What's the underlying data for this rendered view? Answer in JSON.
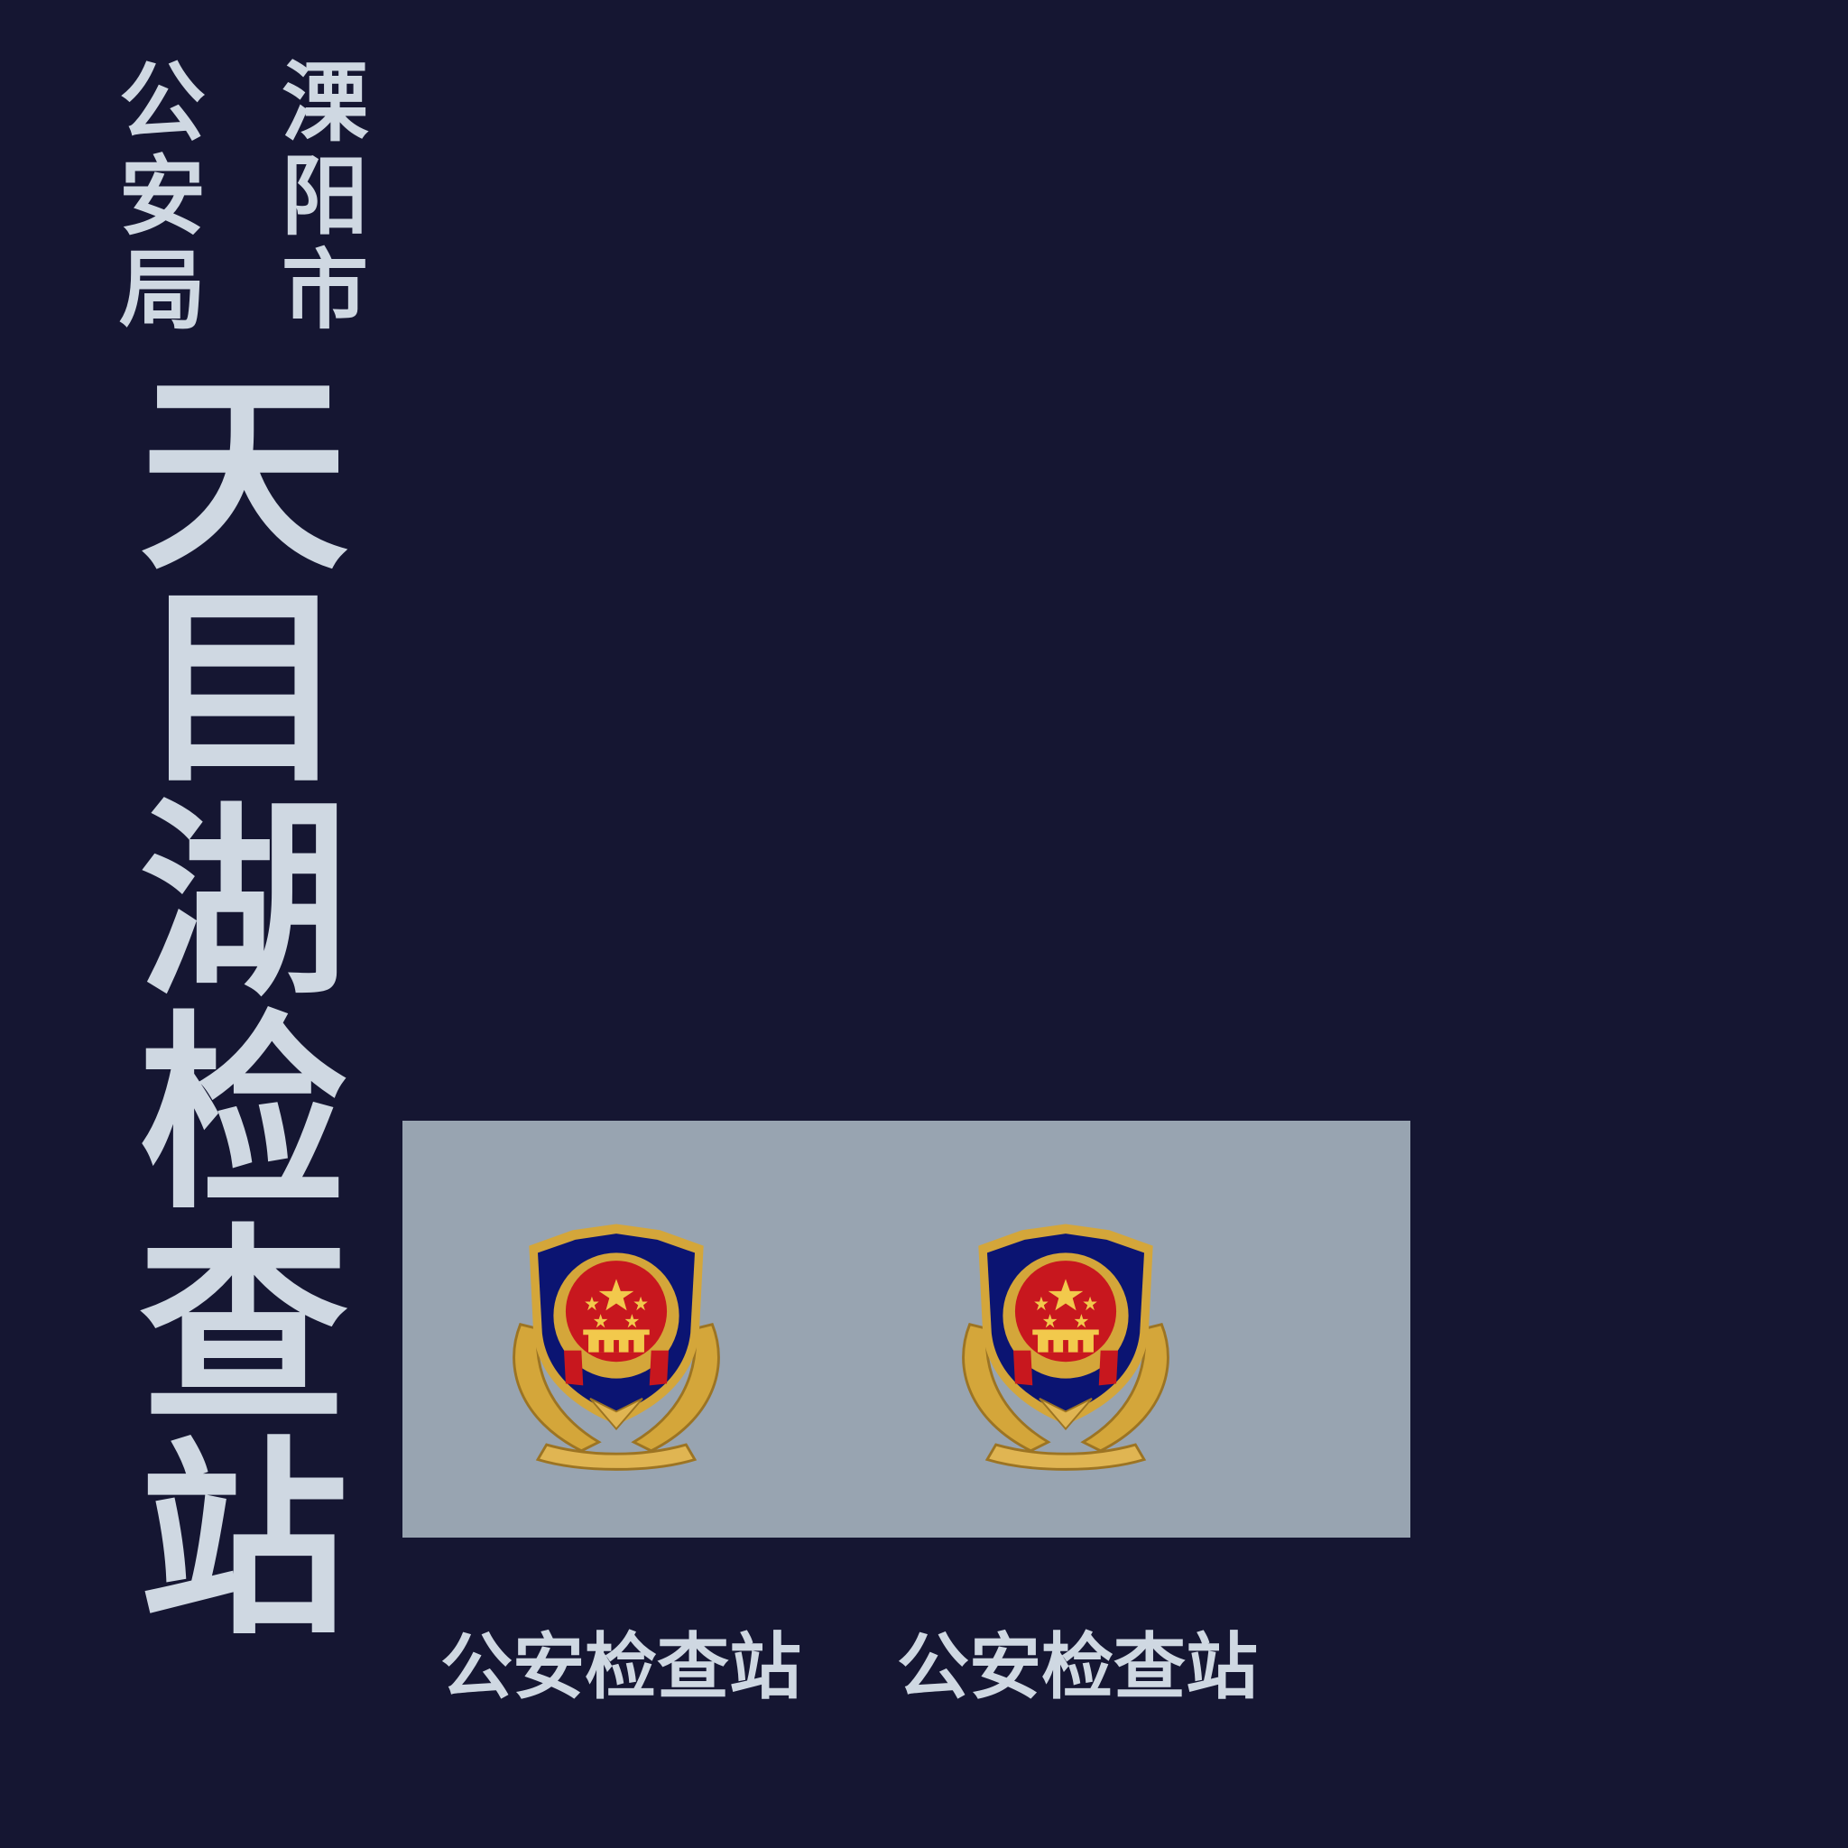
{
  "header": {
    "city_chars": [
      "溧",
      "阳",
      "市"
    ],
    "bureau_chars": [
      "公",
      "安",
      "局"
    ]
  },
  "title": {
    "chars": [
      "天",
      "目",
      "湖",
      "检",
      "查",
      "站"
    ]
  },
  "emblems": {
    "icon": "police-emblem-icon",
    "count": 2
  },
  "captions": [
    "公安检查站",
    "公安检查站"
  ],
  "colors": {
    "background": "#151632",
    "text": "#cfd8e2",
    "panel": "#98a4b1",
    "shield_blue": "#0b1472",
    "shield_red": "#c8171e",
    "gold": "#d4a63a"
  }
}
